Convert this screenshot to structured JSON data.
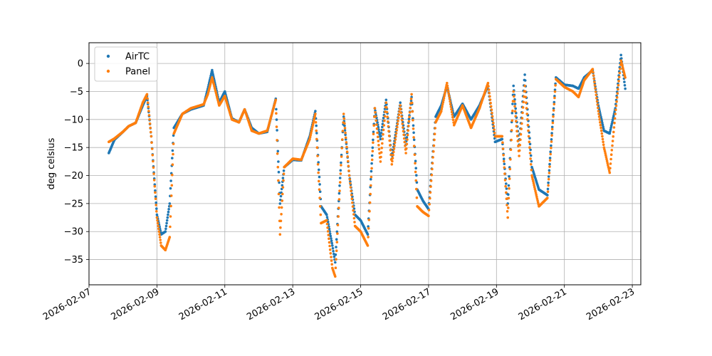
{
  "chart_data": {
    "type": "scatter",
    "title": "",
    "xlabel": "",
    "ylabel": "deg celsius",
    "x_ticks": [
      "2026-02-07",
      "2026-02-09",
      "2026-02-11",
      "2026-02-13",
      "2026-02-15",
      "2026-02-17",
      "2026-02-19",
      "2026-02-21",
      "2026-02-23"
    ],
    "y_ticks": [
      0,
      -5,
      -10,
      -15,
      -20,
      -25,
      -30,
      -35
    ],
    "xlim": [
      "2026-02-07T00:00",
      "2026-02-23T06:00"
    ],
    "ylim": [
      -39.5,
      3.7
    ],
    "grid": true,
    "legend_position": "upper-left",
    "series": [
      {
        "name": "AirTC",
        "color": "#1f77b4",
        "points": [
          [
            "2026-02-07T14:00",
            -16.0
          ],
          [
            "2026-02-07T18:00",
            -13.6
          ],
          [
            "2026-02-08T00:00",
            -12.2
          ],
          [
            "2026-02-08T04:00",
            -11.2
          ],
          [
            "2026-02-08T09:00",
            -10.6
          ],
          [
            "2026-02-08T14:00",
            -7.5
          ],
          [
            "2026-02-08T17:00",
            -5.8
          ],
          [
            "2026-02-08T20:00",
            -13.0
          ],
          [
            "2026-02-09T00:00",
            -27.0
          ],
          [
            "2026-02-09T03:00",
            -30.5
          ],
          [
            "2026-02-09T06:00",
            -30.0
          ],
          [
            "2026-02-09T09:00",
            -25.0
          ],
          [
            "2026-02-09T12:00",
            -11.5
          ],
          [
            "2026-02-09T18:00",
            -9.0
          ],
          [
            "2026-02-10T00:00",
            -8.2
          ],
          [
            "2026-02-10T09:00",
            -7.5
          ],
          [
            "2026-02-10T12:00",
            -4.5
          ],
          [
            "2026-02-10T15:00",
            -1.2
          ],
          [
            "2026-02-10T20:00",
            -7.0
          ],
          [
            "2026-02-11T00:00",
            -5.0
          ],
          [
            "2026-02-11T05:00",
            -9.8
          ],
          [
            "2026-02-11T10:00",
            -10.5
          ],
          [
            "2026-02-11T14:00",
            -8.2
          ],
          [
            "2026-02-11T19:00",
            -11.5
          ],
          [
            "2026-02-12T00:00",
            -12.5
          ],
          [
            "2026-02-12T06:00",
            -12.2
          ],
          [
            "2026-02-12T12:00",
            -6.3
          ],
          [
            "2026-02-12T15:00",
            -25.0
          ],
          [
            "2026-02-12T18:00",
            -18.5
          ],
          [
            "2026-02-13T00:00",
            -17.2
          ],
          [
            "2026-02-13T06:00",
            -17.3
          ],
          [
            "2026-02-13T12:00",
            -13.0
          ],
          [
            "2026-02-13T16:00",
            -8.5
          ],
          [
            "2026-02-13T20:00",
            -25.5
          ],
          [
            "2026-02-14T00:00",
            -27.0
          ],
          [
            "2026-02-14T04:00",
            -32.5
          ],
          [
            "2026-02-14T06:00",
            -35.5
          ],
          [
            "2026-02-14T12:00",
            -9.5
          ],
          [
            "2026-02-14T16:00",
            -20.0
          ],
          [
            "2026-02-14T20:00",
            -27.0
          ],
          [
            "2026-02-15T00:00",
            -28.0
          ],
          [
            "2026-02-15T05:00",
            -30.5
          ],
          [
            "2026-02-15T10:00",
            -8.0
          ],
          [
            "2026-02-15T14:00",
            -13.5
          ],
          [
            "2026-02-15T18:00",
            -6.5
          ],
          [
            "2026-02-15T22:00",
            -17.0
          ],
          [
            "2026-02-16T04:00",
            -7.0
          ],
          [
            "2026-02-16T08:00",
            -14.5
          ],
          [
            "2026-02-16T12:00",
            -6.0
          ],
          [
            "2026-02-16T16:00",
            -22.5
          ],
          [
            "2026-02-16T20:00",
            -24.5
          ],
          [
            "2026-02-17T00:00",
            -26.0
          ],
          [
            "2026-02-17T05:00",
            -9.5
          ],
          [
            "2026-02-17T09:00",
            -7.5
          ],
          [
            "2026-02-17T13:00",
            -4.0
          ],
          [
            "2026-02-17T18:00",
            -9.5
          ],
          [
            "2026-02-18T00:00",
            -7.2
          ],
          [
            "2026-02-18T06:00",
            -10.0
          ],
          [
            "2026-02-18T12:00",
            -7.5
          ],
          [
            "2026-02-18T18:00",
            -4.0
          ],
          [
            "2026-02-18T23:00",
            -14.0
          ],
          [
            "2026-02-19T04:00",
            -13.5
          ],
          [
            "2026-02-19T08:00",
            -25.0
          ],
          [
            "2026-02-19T12:00",
            -4.0
          ],
          [
            "2026-02-19T16:00",
            -14.5
          ],
          [
            "2026-02-19T20:00",
            -2.0
          ],
          [
            "2026-02-20T01:00",
            -18.5
          ],
          [
            "2026-02-20T06:00",
            -22.5
          ],
          [
            "2026-02-20T12:00",
            -23.5
          ],
          [
            "2026-02-20T18:00",
            -2.5
          ],
          [
            "2026-02-21T00:00",
            -3.8
          ],
          [
            "2026-02-21T06:00",
            -4.0
          ],
          [
            "2026-02-21T10:00",
            -4.5
          ],
          [
            "2026-02-21T14:00",
            -2.5
          ],
          [
            "2026-02-21T20:00",
            -1.2
          ],
          [
            "2026-02-22T00:00",
            -7.5
          ],
          [
            "2026-02-22T04:00",
            -12.0
          ],
          [
            "2026-02-22T08:00",
            -12.5
          ],
          [
            "2026-02-22T12:00",
            -8.0
          ],
          [
            "2026-02-22T16:00",
            1.5
          ],
          [
            "2026-02-22T19:00",
            -4.5
          ]
        ]
      },
      {
        "name": "Panel",
        "color": "#ff7f0e",
        "points": [
          [
            "2026-02-07T14:00",
            -14.0
          ],
          [
            "2026-02-07T18:00",
            -13.4
          ],
          [
            "2026-02-08T00:00",
            -12.2
          ],
          [
            "2026-02-08T04:00",
            -11.2
          ],
          [
            "2026-02-08T09:00",
            -10.6
          ],
          [
            "2026-02-08T14:00",
            -7.0
          ],
          [
            "2026-02-08T17:00",
            -5.5
          ],
          [
            "2026-02-08T20:00",
            -13.0
          ],
          [
            "2026-02-09T00:00",
            -27.5
          ],
          [
            "2026-02-09T03:00",
            -32.5
          ],
          [
            "2026-02-09T06:00",
            -33.3
          ],
          [
            "2026-02-09T09:00",
            -31.0
          ],
          [
            "2026-02-09T12:00",
            -12.5
          ],
          [
            "2026-02-09T18:00",
            -9.0
          ],
          [
            "2026-02-10T00:00",
            -8.0
          ],
          [
            "2026-02-10T09:00",
            -7.3
          ],
          [
            "2026-02-10T12:00",
            -5.5
          ],
          [
            "2026-02-10T15:00",
            -2.5
          ],
          [
            "2026-02-10T20:00",
            -7.5
          ],
          [
            "2026-02-11T00:00",
            -5.8
          ],
          [
            "2026-02-11T05:00",
            -10.0
          ],
          [
            "2026-02-11T10:00",
            -10.5
          ],
          [
            "2026-02-11T14:00",
            -8.2
          ],
          [
            "2026-02-11T19:00",
            -12.0
          ],
          [
            "2026-02-12T00:00",
            -12.5
          ],
          [
            "2026-02-12T06:00",
            -12.0
          ],
          [
            "2026-02-12T12:00",
            -6.5
          ],
          [
            "2026-02-12T15:00",
            -30.5
          ],
          [
            "2026-02-12T18:00",
            -18.5
          ],
          [
            "2026-02-13T00:00",
            -17.0
          ],
          [
            "2026-02-13T06:00",
            -17.2
          ],
          [
            "2026-02-13T12:00",
            -13.5
          ],
          [
            "2026-02-13T16:00",
            -9.0
          ],
          [
            "2026-02-13T20:00",
            -28.5
          ],
          [
            "2026-02-14T00:00",
            -28.0
          ],
          [
            "2026-02-14T04:00",
            -36.5
          ],
          [
            "2026-02-14T06:00",
            -38.0
          ],
          [
            "2026-02-14T12:00",
            -9.0
          ],
          [
            "2026-02-14T16:00",
            -20.0
          ],
          [
            "2026-02-14T20:00",
            -29.0
          ],
          [
            "2026-02-15T00:00",
            -30.0
          ],
          [
            "2026-02-15T05:00",
            -32.5
          ],
          [
            "2026-02-15T10:00",
            -8.0
          ],
          [
            "2026-02-15T14:00",
            -17.5
          ],
          [
            "2026-02-15T18:00",
            -7.0
          ],
          [
            "2026-02-15T22:00",
            -18.0
          ],
          [
            "2026-02-16T04:00",
            -7.5
          ],
          [
            "2026-02-16T08:00",
            -16.0
          ],
          [
            "2026-02-16T12:00",
            -5.5
          ],
          [
            "2026-02-16T16:00",
            -25.5
          ],
          [
            "2026-02-16T20:00",
            -26.5
          ],
          [
            "2026-02-17T00:00",
            -27.2
          ],
          [
            "2026-02-17T05:00",
            -10.5
          ],
          [
            "2026-02-17T09:00",
            -8.5
          ],
          [
            "2026-02-17T13:00",
            -3.5
          ],
          [
            "2026-02-17T18:00",
            -11.0
          ],
          [
            "2026-02-18T00:00",
            -7.5
          ],
          [
            "2026-02-18T06:00",
            -11.5
          ],
          [
            "2026-02-18T12:00",
            -8.0
          ],
          [
            "2026-02-18T18:00",
            -3.5
          ],
          [
            "2026-02-18T23:00",
            -13.0
          ],
          [
            "2026-02-19T04:00",
            -13.0
          ],
          [
            "2026-02-19T08:00",
            -27.5
          ],
          [
            "2026-02-19T12:00",
            -5.0
          ],
          [
            "2026-02-19T16:00",
            -16.5
          ],
          [
            "2026-02-19T20:00",
            -4.0
          ],
          [
            "2026-02-20T01:00",
            -20.0
          ],
          [
            "2026-02-20T06:00",
            -25.5
          ],
          [
            "2026-02-20T12:00",
            -24.0
          ],
          [
            "2026-02-20T18:00",
            -2.8
          ],
          [
            "2026-02-21T00:00",
            -4.2
          ],
          [
            "2026-02-21T06:00",
            -5.0
          ],
          [
            "2026-02-21T10:00",
            -6.0
          ],
          [
            "2026-02-21T14:00",
            -3.0
          ],
          [
            "2026-02-21T20:00",
            -1.0
          ],
          [
            "2026-02-22T00:00",
            -8.5
          ],
          [
            "2026-02-22T04:00",
            -15.0
          ],
          [
            "2026-02-22T08:00",
            -19.5
          ],
          [
            "2026-02-22T12:00",
            -9.0
          ],
          [
            "2026-02-22T16:00",
            0.5
          ],
          [
            "2026-02-22T19:00",
            -2.5
          ]
        ]
      }
    ]
  }
}
